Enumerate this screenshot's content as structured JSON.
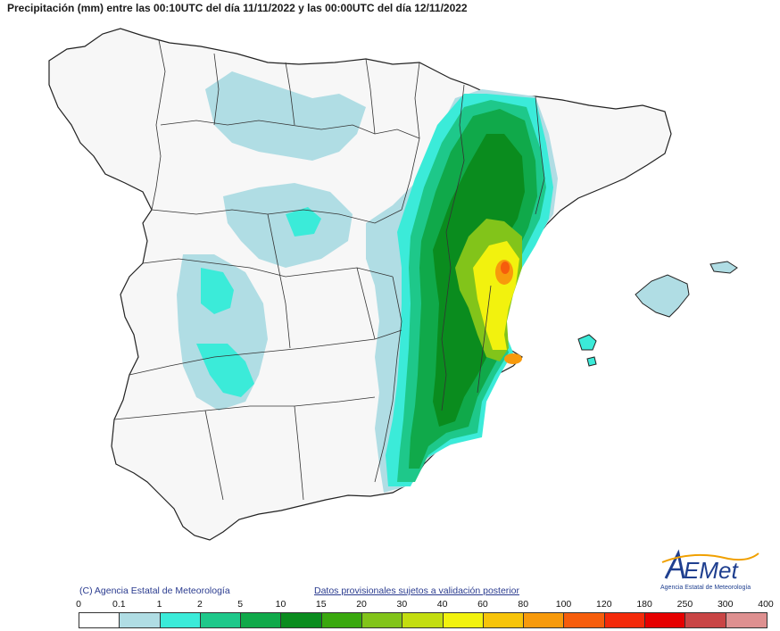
{
  "title": "Precipitación (mm) entre las 00:10UTC del día 11/11/2022 y las 00:00UTC del día 12/11/2022",
  "copyright": "(C) Agencia Estatal de Meteorología",
  "disclaimer": "Datos provisionales sujetos a validación posterior",
  "logo": {
    "name": "AEMet",
    "subtitle": "Agencia Estatal de Meteorología"
  },
  "legend": {
    "thresholds": [
      "0",
      "0.1",
      "1",
      "2",
      "5",
      "10",
      "15",
      "20",
      "30",
      "40",
      "60",
      "80",
      "100",
      "120",
      "180",
      "250",
      "300",
      "400"
    ],
    "colors": [
      "#ffffff",
      "#b0dde4",
      "#3bebd9",
      "#1ec88a",
      "#10a94a",
      "#0a8c1e",
      "#3aa80e",
      "#82c41a",
      "#c3dd10",
      "#f2f20e",
      "#f7c40a",
      "#f79a0c",
      "#f65d0c",
      "#f42a0a",
      "#e60000",
      "#c94545",
      "#de9090",
      "#f0c8c8"
    ]
  },
  "map_colors": {
    "land": "#f7f7f7",
    "border": "#222222",
    "light": "#b0dde4",
    "cyan": "#3bebd9",
    "teal": "#1ec88a",
    "green": "#10a94a",
    "dkgreen": "#0a8c1e",
    "lime": "#82c41a",
    "yellow": "#f2f20e",
    "orange": "#f79a0c",
    "red": "#f65d0c"
  }
}
